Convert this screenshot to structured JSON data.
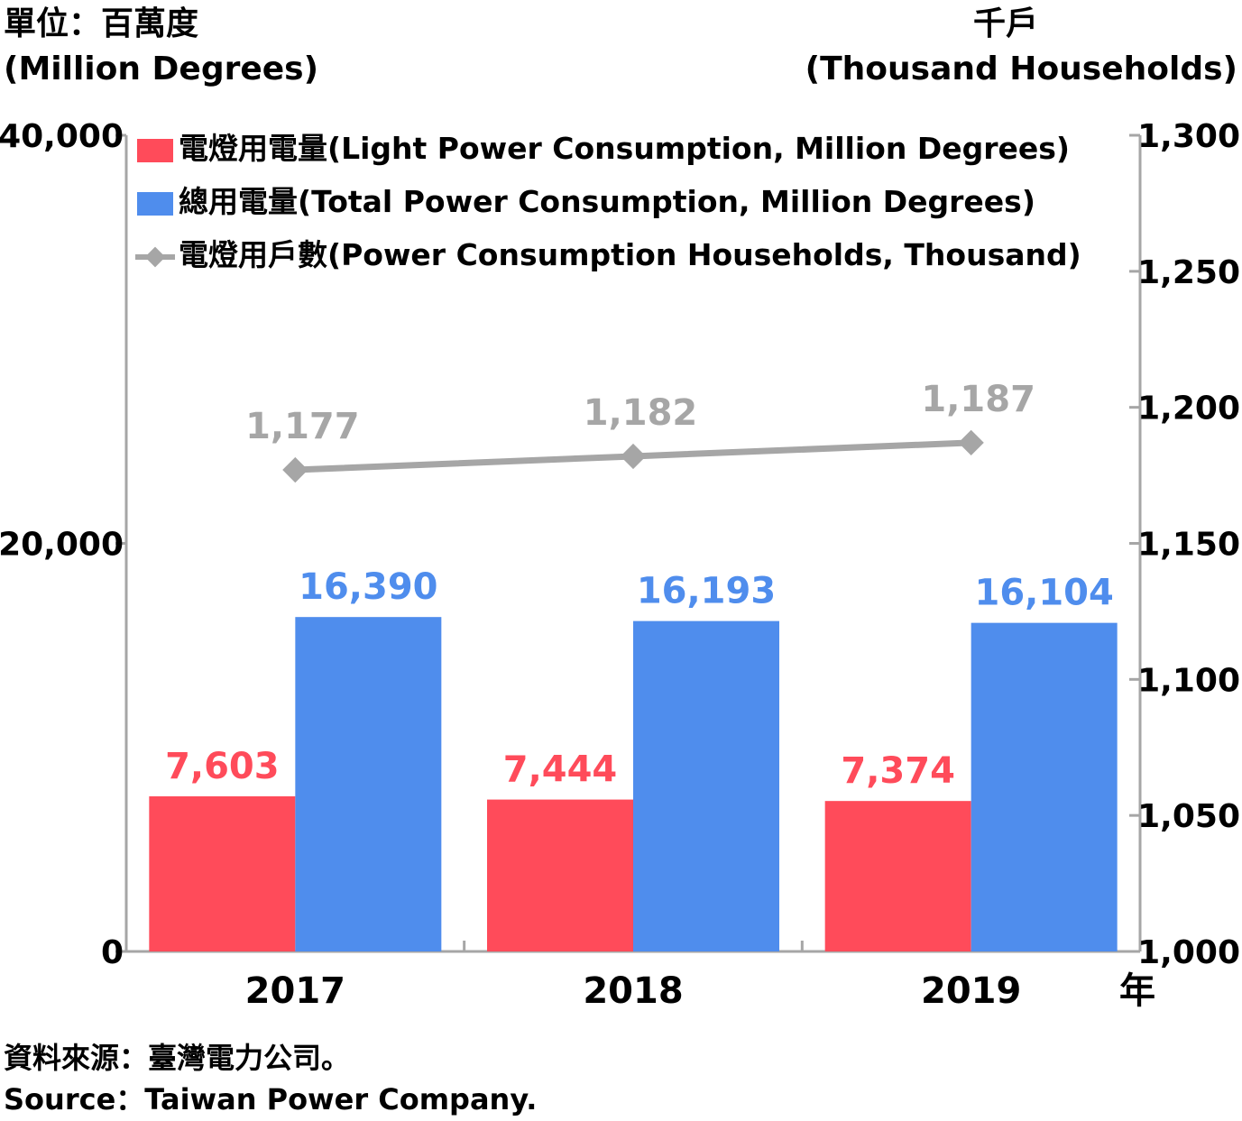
{
  "chart_data": {
    "type": "bar",
    "categories": [
      "2017",
      "2018",
      "2019"
    ],
    "x_unit": "年",
    "left_axis": {
      "unit_zh": "單位：百萬度",
      "unit_en": "(Million Degrees)",
      "ylim": [
        0,
        40000
      ],
      "ticks": [
        "0",
        "20,000",
        "40,000"
      ]
    },
    "right_axis": {
      "unit_zh": "千戶",
      "unit_en": "(Thousand Households)",
      "ylim": [
        1000,
        1300
      ],
      "ticks": [
        "1,000",
        "1,050",
        "1,100",
        "1,150",
        "1,200",
        "1,250",
        "1,300"
      ]
    },
    "series": [
      {
        "name": "電燈用電量(Light Power Consumption, Million Degrees)",
        "kind": "bar",
        "axis": "left",
        "color": "#ff4b5a",
        "values": [
          7603,
          7444,
          7374
        ],
        "labels": [
          "7,603",
          "7,444",
          "7,374"
        ]
      },
      {
        "name": "總用電量(Total Power Consumption, Million Degrees)",
        "kind": "bar",
        "axis": "left",
        "color": "#4f8ded",
        "values": [
          16390,
          16193,
          16104
        ],
        "labels": [
          "16,390",
          "16,193",
          "16,104"
        ]
      },
      {
        "name": "電燈用戶數(Power Consumption Households, Thousand)",
        "kind": "line",
        "axis": "right",
        "color": "#a6a6a6",
        "values": [
          1177,
          1182,
          1187
        ],
        "labels": [
          "1,177",
          "1,182",
          "1,187"
        ]
      }
    ],
    "grid": false,
    "legend_position": "top-left"
  },
  "source": {
    "zh": "資料來源：臺灣電力公司。",
    "en": "Source：Taiwan Power Company."
  }
}
